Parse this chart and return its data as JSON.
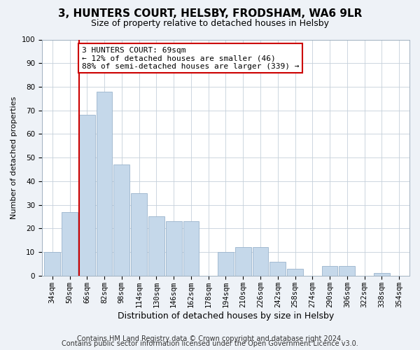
{
  "title": "3, HUNTERS COURT, HELSBY, FRODSHAM, WA6 9LR",
  "subtitle": "Size of property relative to detached houses in Helsby",
  "xlabel": "Distribution of detached houses by size in Helsby",
  "ylabel": "Number of detached properties",
  "categories": [
    "34sqm",
    "50sqm",
    "66sqm",
    "82sqm",
    "98sqm",
    "114sqm",
    "130sqm",
    "146sqm",
    "162sqm",
    "178sqm",
    "194sqm",
    "210sqm",
    "226sqm",
    "242sqm",
    "258sqm",
    "274sqm",
    "290sqm",
    "306sqm",
    "322sqm",
    "338sqm",
    "354sqm"
  ],
  "values": [
    10,
    27,
    68,
    78,
    47,
    35,
    25,
    23,
    23,
    0,
    10,
    12,
    12,
    6,
    3,
    0,
    4,
    4,
    0,
    1,
    0
  ],
  "bar_color": "#c5d8ea",
  "bar_edge_color": "#9ab4cc",
  "reference_line_x": 2,
  "reference_line_color": "#cc0000",
  "ylim": [
    0,
    100
  ],
  "footer_line1": "Contains HM Land Registry data © Crown copyright and database right 2024.",
  "footer_line2": "Contains public sector information licensed under the Open Government Licence v3.0.",
  "background_color": "#eef2f7",
  "plot_background_color": "#ffffff",
  "title_fontsize": 11,
  "subtitle_fontsize": 9,
  "xlabel_fontsize": 9,
  "ylabel_fontsize": 8,
  "footer_fontsize": 7,
  "tick_fontsize": 7.5,
  "annot_title": "3 HUNTERS COURT: 69sqm",
  "annot_line2": "← 12% of detached houses are smaller (46)",
  "annot_line3": "88% of semi-detached houses are larger (339) →"
}
